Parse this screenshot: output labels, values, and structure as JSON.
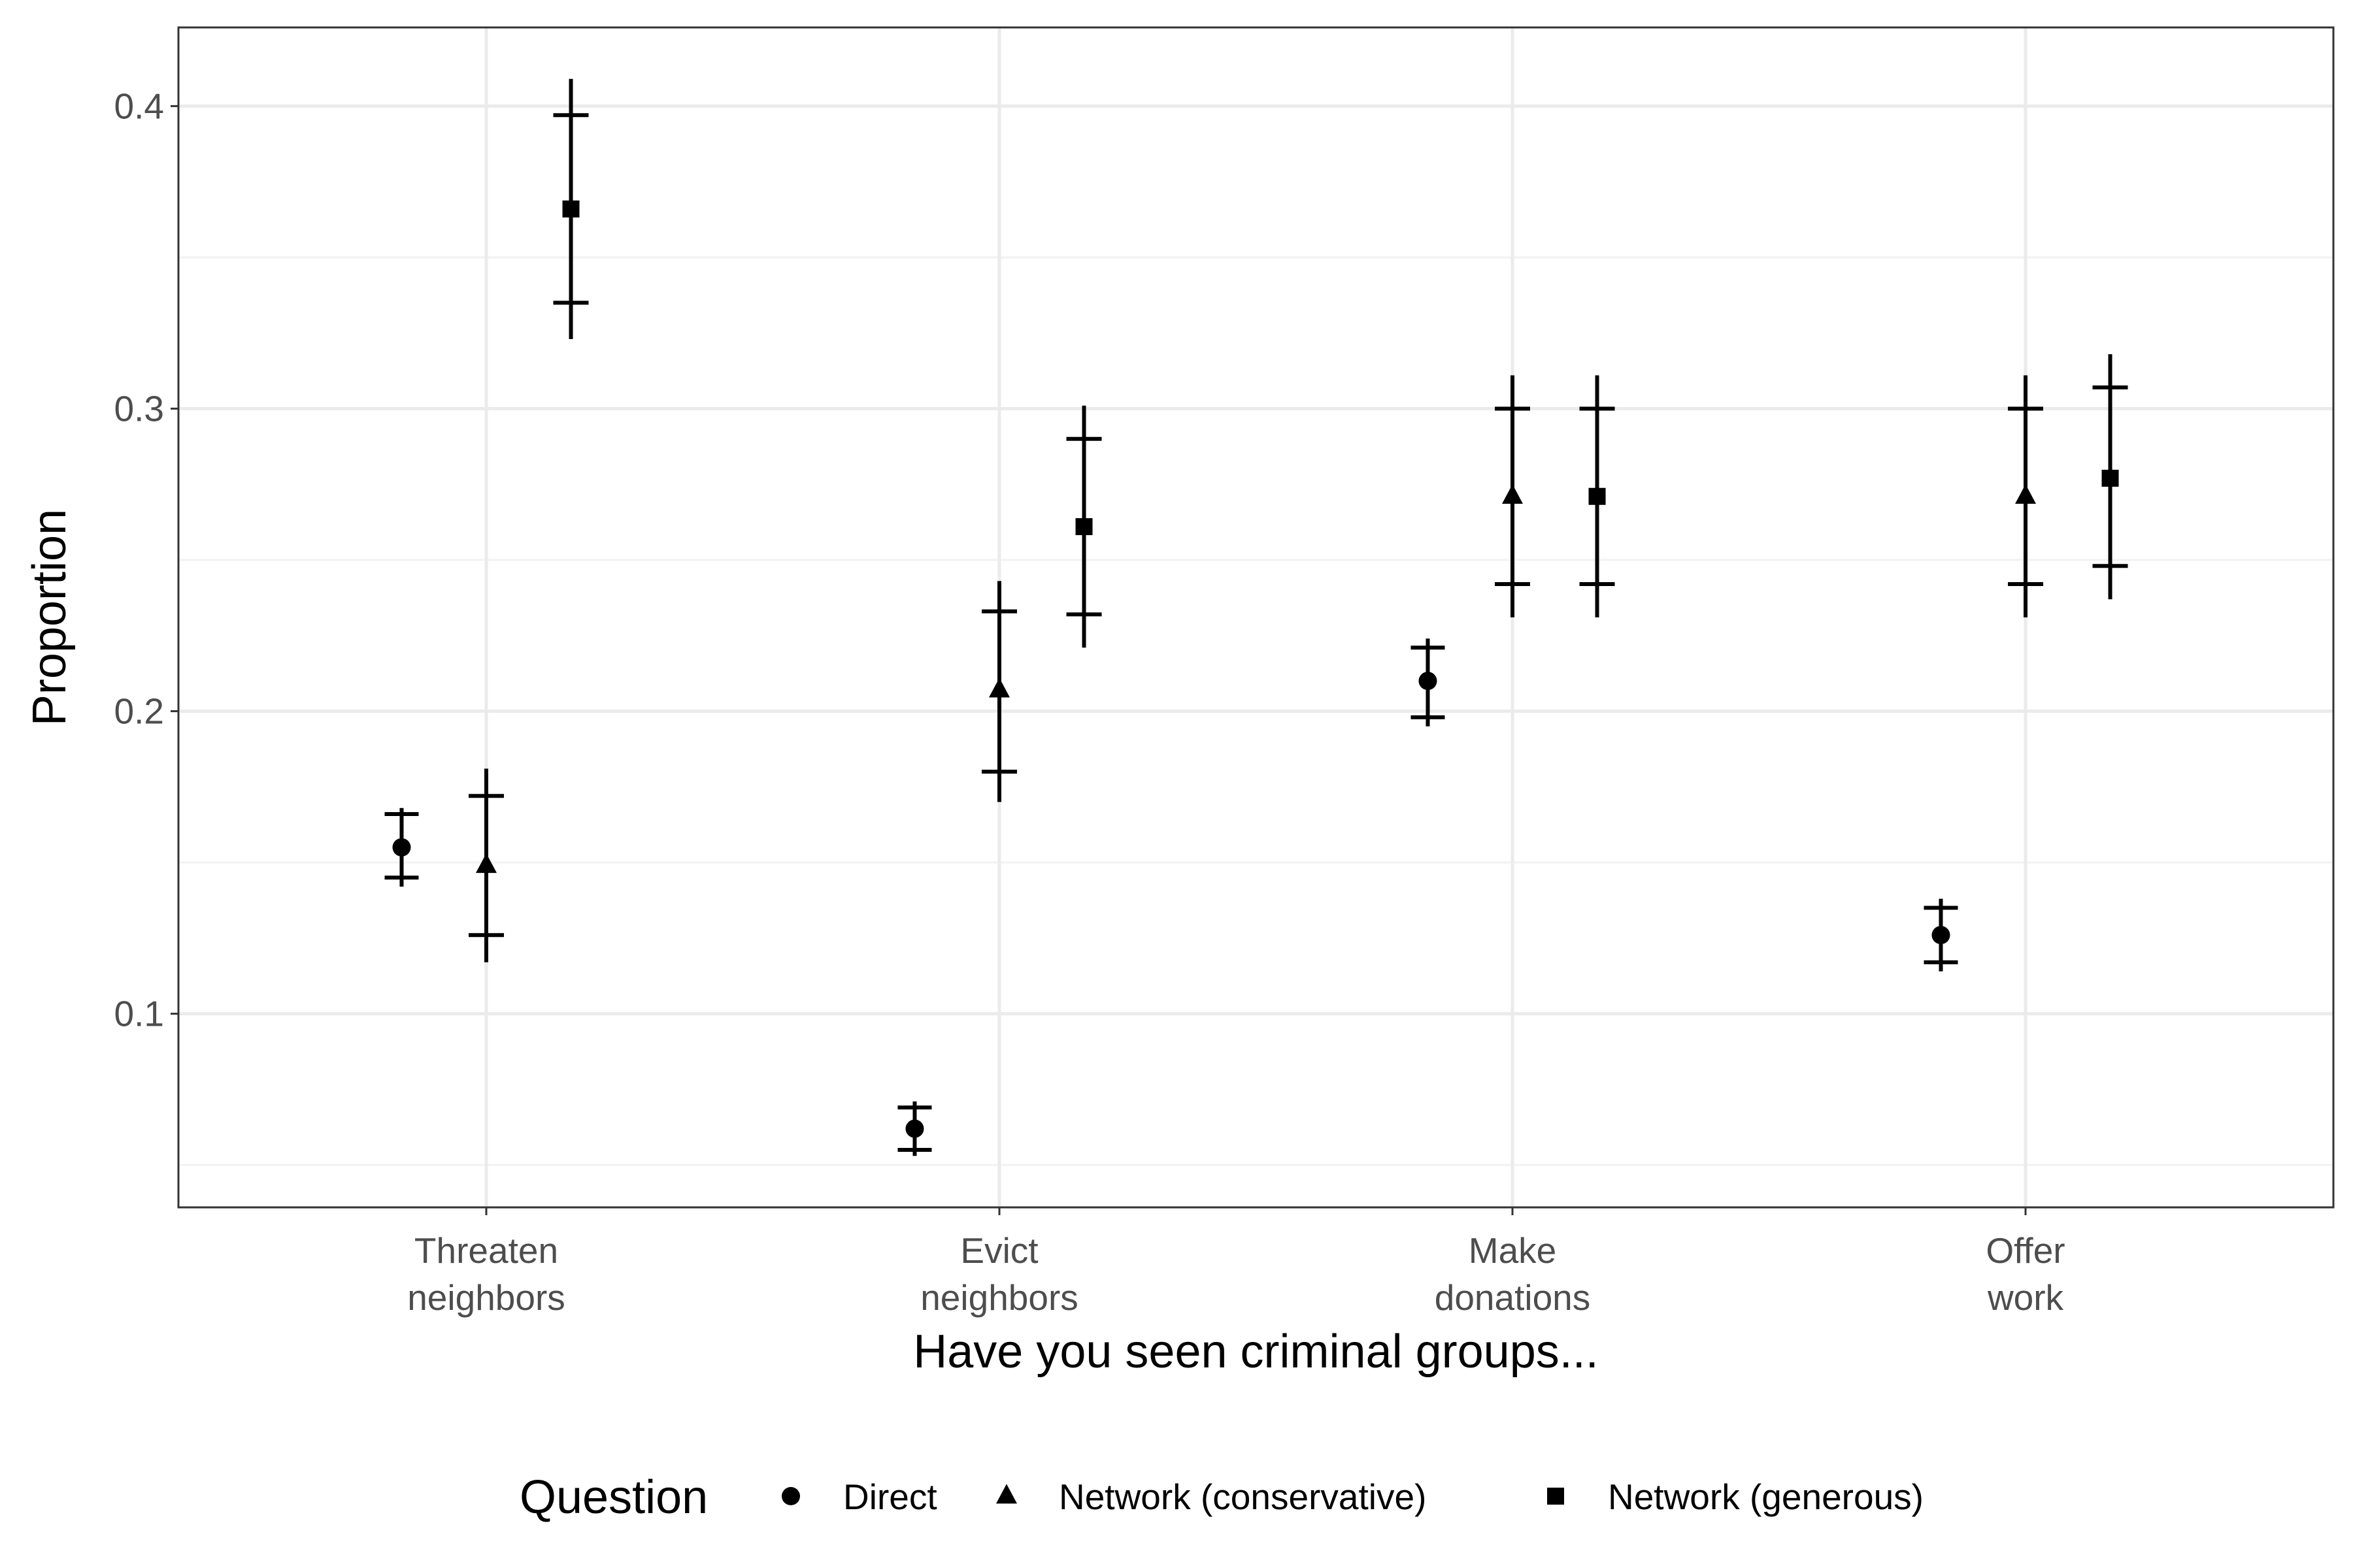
{
  "chart_data": {
    "type": "scatter",
    "xlabel": "Have you seen criminal groups...",
    "ylabel": "Proportion",
    "categories": [
      [
        "Threaten",
        "neighbors"
      ],
      [
        "Evict",
        "neighbors"
      ],
      [
        "Make",
        "donations"
      ],
      [
        "Offer",
        "work"
      ]
    ],
    "ylim": [
      0.036,
      0.426
    ],
    "yticks": [
      0.1,
      0.2,
      0.3,
      0.4
    ],
    "yticklabels": [
      "0.1",
      "0.2",
      "0.3",
      "0.4"
    ],
    "grid": true,
    "legend": {
      "title": "Question",
      "position": "bottom"
    },
    "series": [
      {
        "name": "Direct",
        "shape": "circle",
        "estimate": [
          0.155,
          0.062,
          0.21,
          0.126
        ],
        "inner": [
          [
            0.145,
            0.166
          ],
          [
            0.055,
            0.069
          ],
          [
            0.198,
            0.221
          ],
          [
            0.117,
            0.135
          ]
        ],
        "outer": [
          [
            0.142,
            0.168
          ],
          [
            0.053,
            0.071
          ],
          [
            0.195,
            0.224
          ],
          [
            0.114,
            0.138
          ]
        ]
      },
      {
        "name": "Network (conservative)",
        "shape": "triangle",
        "estimate": [
          0.149,
          0.207,
          0.271,
          0.271
        ],
        "inner": [
          [
            0.126,
            0.172
          ],
          [
            0.18,
            0.233
          ],
          [
            0.242,
            0.3
          ],
          [
            0.242,
            0.3
          ]
        ],
        "outer": [
          [
            0.117,
            0.181
          ],
          [
            0.17,
            0.243
          ],
          [
            0.231,
            0.311
          ],
          [
            0.231,
            0.311
          ]
        ]
      },
      {
        "name": "Network (generous)",
        "shape": "square",
        "estimate": [
          0.366,
          0.261,
          0.271,
          0.277
        ],
        "inner": [
          [
            0.335,
            0.397
          ],
          [
            0.232,
            0.29
          ],
          [
            0.242,
            0.3
          ],
          [
            0.248,
            0.307
          ]
        ],
        "outer": [
          [
            0.323,
            0.409
          ],
          [
            0.221,
            0.301
          ],
          [
            0.231,
            0.311
          ],
          [
            0.237,
            0.318
          ]
        ]
      }
    ],
    "colors": {
      "marks": "#000000",
      "grid_major": "#ebebeb",
      "grid_minor": "#f2f2f2",
      "panel_border": "#333333",
      "tick_text": "#4d4d4d"
    }
  }
}
